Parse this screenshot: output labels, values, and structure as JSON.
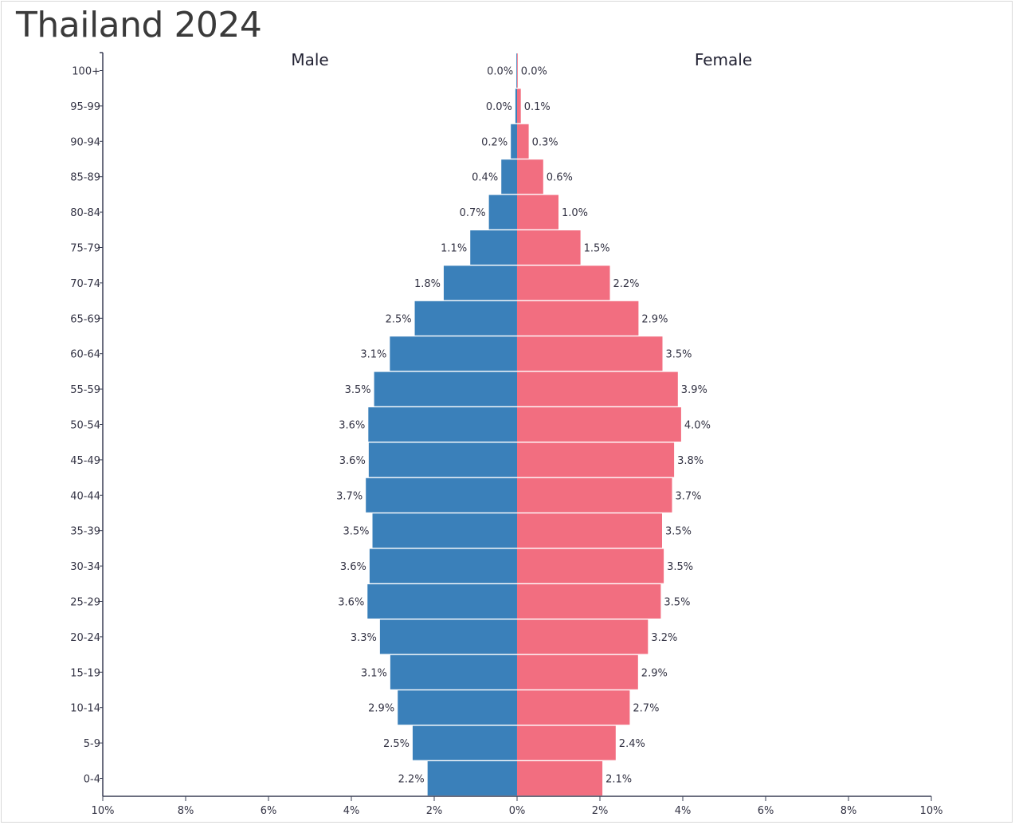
{
  "title": "Thailand 2024",
  "chart_data": {
    "type": "bar",
    "orientation": "horizontal-pyramid",
    "title": "Thailand 2024",
    "categories": [
      "100+",
      "95-99",
      "90-94",
      "85-89",
      "80-84",
      "75-79",
      "70-74",
      "65-69",
      "60-64",
      "55-59",
      "50-54",
      "45-49",
      "40-44",
      "35-39",
      "30-34",
      "25-29",
      "20-24",
      "15-19",
      "10-14",
      "5-9",
      "0-4"
    ],
    "series": [
      {
        "name": "Male",
        "color": "#3a80ba",
        "values": [
          0.0,
          0.04,
          0.15,
          0.38,
          0.68,
          1.13,
          1.77,
          2.47,
          3.07,
          3.45,
          3.59,
          3.58,
          3.65,
          3.49,
          3.56,
          3.61,
          3.31,
          3.06,
          2.88,
          2.52,
          2.16
        ],
        "labels": [
          "0.0%",
          "0.0%",
          "0.2%",
          "0.4%",
          "0.7%",
          "1.1%",
          "1.8%",
          "2.5%",
          "3.1%",
          "3.5%",
          "3.6%",
          "3.6%",
          "3.7%",
          "3.5%",
          "3.6%",
          "3.6%",
          "3.3%",
          "3.1%",
          "2.9%",
          "2.5%",
          "2.2%"
        ]
      },
      {
        "name": "Female",
        "color": "#f26e80",
        "values": [
          0.0,
          0.09,
          0.28,
          0.63,
          1.0,
          1.53,
          2.24,
          2.93,
          3.51,
          3.88,
          3.96,
          3.79,
          3.74,
          3.5,
          3.54,
          3.47,
          3.16,
          2.92,
          2.72,
          2.38,
          2.06
        ],
        "labels": [
          "0.0%",
          "0.1%",
          "0.3%",
          "0.6%",
          "1.0%",
          "1.5%",
          "2.2%",
          "2.9%",
          "3.5%",
          "3.9%",
          "4.0%",
          "3.8%",
          "3.7%",
          "3.5%",
          "3.5%",
          "3.5%",
          "3.2%",
          "2.9%",
          "2.7%",
          "2.4%",
          "2.1%"
        ]
      }
    ],
    "x_ticks": [
      "10%",
      "8%",
      "6%",
      "4%",
      "2%",
      "0%",
      "2%",
      "4%",
      "6%",
      "8%",
      "10%"
    ],
    "xlim": [
      -10,
      10
    ],
    "grid": false,
    "legend": "top"
  }
}
